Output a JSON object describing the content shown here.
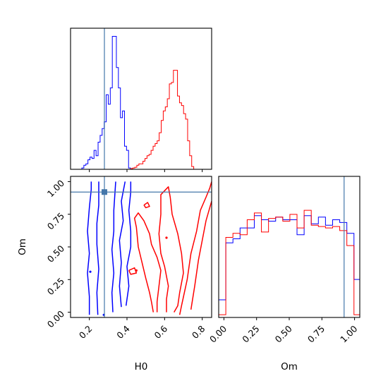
{
  "chart_data": {
    "type": "corner",
    "parameters": [
      "H0",
      "Om"
    ],
    "truth": {
      "H0": 0.28,
      "Om": 0.92
    },
    "colors": {
      "series_a": "#0000ff",
      "series_b": "#ff0000",
      "truth": "#4477aa"
    },
    "panels": [
      {
        "id": "h0-marginal",
        "type": "histogram",
        "x_param": "H0",
        "xlim": [
          0.1,
          0.85
        ],
        "ylim": [
          0,
          1.04
        ],
        "y_ticks_visible": false,
        "x_tick_labels_visible": false,
        "bins": [
          0.06,
          0.07,
          0.08,
          0.09,
          0.1,
          0.11,
          0.12,
          0.13,
          0.14,
          0.15,
          0.16,
          0.17,
          0.18,
          0.19,
          0.2,
          0.21,
          0.22,
          0.23,
          0.24,
          0.25,
          0.26,
          0.27,
          0.28,
          0.29,
          0.3,
          0.31,
          0.32,
          0.33,
          0.34,
          0.35,
          0.36,
          0.37,
          0.38,
          0.39,
          0.4,
          0.41,
          0.42,
          0.43,
          0.44,
          0.45,
          0.46,
          0.47,
          0.48,
          0.49,
          0.5,
          0.51,
          0.52,
          0.53,
          0.54,
          0.55,
          0.56,
          0.57,
          0.58,
          0.59,
          0.6,
          0.61,
          0.62,
          0.63,
          0.64,
          0.65,
          0.66,
          0.67,
          0.68,
          0.69,
          0.7,
          0.71,
          0.72,
          0.73,
          0.74,
          0.75,
          0.76,
          0.77,
          0.78,
          0.79,
          0.8,
          0.81,
          0.82,
          0.83,
          0.84,
          0.85,
          0.86
        ],
        "series": [
          {
            "color": "#0000ff",
            "x_start": 0.16,
            "bin_width": 0.0108,
            "counts": [
              0.01,
              0.03,
              0.04,
              0.07,
              0.09,
              0.08,
              0.14,
              0.1,
              0.2,
              0.25,
              0.3,
              0.35,
              0.55,
              0.48,
              0.6,
              0.98,
              0.98,
              0.75,
              0.6,
              0.38,
              0.43,
              0.17,
              0.14,
              0.01
            ]
          },
          {
            "color": "#ff0000",
            "x_start": 0.42,
            "bin_width": 0.0108,
            "counts": [
              0.005,
              0.01,
              0.015,
              0.03,
              0.04,
              0.04,
              0.06,
              0.08,
              0.1,
              0.11,
              0.14,
              0.17,
              0.19,
              0.21,
              0.27,
              0.36,
              0.43,
              0.46,
              0.52,
              0.63,
              0.64,
              0.73,
              0.73,
              0.54,
              0.49,
              0.47,
              0.41,
              0.37,
              0.21,
              0.1,
              0.02
            ]
          }
        ]
      },
      {
        "id": "h0-om-joint",
        "type": "contour",
        "x_param": "H0",
        "y_param": "Om",
        "xlim": [
          0.1,
          0.85
        ],
        "ylim": [
          -0.04,
          1.04
        ],
        "xticks": [
          0.2,
          0.4,
          0.6,
          0.8
        ],
        "xtick_labels": [
          "0.2",
          "0.4",
          "0.6",
          "0.8"
        ],
        "yticks": [
          0.0,
          0.25,
          0.5,
          0.75,
          1.0
        ],
        "ytick_labels": [
          "0.00",
          "0.25",
          "0.50",
          "0.75",
          "1.00"
        ],
        "xlabel": "H0",
        "ylabel": "Om",
        "series": [
          {
            "color": "#0000ff",
            "contours": [
              [
                [
                  0.2,
                  -0.02
                ],
                [
                  0.2,
                  0.12
                ],
                [
                  0.19,
                  0.3
                ],
                [
                  0.2,
                  0.45
                ],
                [
                  0.19,
                  0.62
                ],
                [
                  0.2,
                  0.8
                ],
                [
                  0.21,
                  0.94
                ],
                [
                  0.21,
                  1.0
                ]
              ],
              [
                [
                  0.245,
                  -0.02
                ],
                [
                  0.24,
                  0.15
                ],
                [
                  0.25,
                  0.33
                ],
                [
                  0.24,
                  0.52
                ],
                [
                  0.24,
                  0.68
                ],
                [
                  0.25,
                  0.82
                ],
                [
                  0.25,
                  1.0
                ]
              ],
              [
                [
                  0.325,
                  0.0
                ],
                [
                  0.32,
                  0.15
                ],
                [
                  0.33,
                  0.3
                ],
                [
                  0.32,
                  0.48
                ],
                [
                  0.33,
                  0.62
                ],
                [
                  0.33,
                  0.78
                ],
                [
                  0.34,
                  1.0
                ]
              ],
              [
                [
                  0.37,
                  0.04
                ],
                [
                  0.36,
                  0.2
                ],
                [
                  0.37,
                  0.38
                ],
                [
                  0.36,
                  0.55
                ],
                [
                  0.38,
                  0.7
                ],
                [
                  0.37,
                  0.85
                ],
                [
                  0.39,
                  1.0
                ]
              ],
              [
                [
                  0.395,
                  0.05
                ],
                [
                  0.41,
                  0.2
                ],
                [
                  0.4,
                  0.35
                ],
                [
                  0.42,
                  0.5
                ],
                [
                  0.42,
                  0.62
                ],
                [
                  0.41,
                  0.78
                ],
                [
                  0.42,
                  0.92
                ],
                [
                  0.42,
                  1.0
                ]
              ]
            ],
            "markers": [
              {
                "x": 0.205,
                "y": 0.31
              },
              {
                "x": 0.277,
                "y": -0.02
              }
            ]
          },
          {
            "color": "#ff0000",
            "contours": [
              [
                [
                  0.41,
                  0.32
                ],
                [
                  0.44,
                  0.34
                ],
                [
                  0.45,
                  0.3
                ],
                [
                  0.42,
                  0.29
                ],
                [
                  0.41,
                  0.32
                ]
              ],
              [
                [
                  0.49,
                  0.82
                ],
                [
                  0.51,
                  0.84
                ],
                [
                  0.52,
                  0.81
                ],
                [
                  0.5,
                  0.8
                ],
                [
                  0.49,
                  0.82
                ]
              ],
              [
                [
                  0.54,
                  0.0
                ],
                [
                  0.53,
                  0.08
                ],
                [
                  0.52,
                  0.15
                ],
                [
                  0.5,
                  0.26
                ],
                [
                  0.48,
                  0.38
                ],
                [
                  0.46,
                  0.5
                ],
                [
                  0.45,
                  0.65
                ],
                [
                  0.44,
                  0.72
                ],
                [
                  0.46,
                  0.76
                ],
                [
                  0.49,
                  0.7
                ],
                [
                  0.52,
                  0.6
                ],
                [
                  0.53,
                  0.52
                ],
                [
                  0.56,
                  0.42
                ],
                [
                  0.58,
                  0.32
                ],
                [
                  0.57,
                  0.2
                ],
                [
                  0.56,
                  0.08
                ],
                [
                  0.56,
                  0.0
                ]
              ],
              [
                [
                  0.61,
                  0.0
                ],
                [
                  0.61,
                  0.1
                ],
                [
                  0.62,
                  0.2
                ],
                [
                  0.6,
                  0.35
                ],
                [
                  0.58,
                  0.45
                ],
                [
                  0.57,
                  0.6
                ],
                [
                  0.58,
                  0.75
                ],
                [
                  0.58,
                  0.9
                ],
                [
                  0.62,
                  0.96
                ],
                [
                  0.63,
                  0.88
                ],
                [
                  0.64,
                  0.75
                ],
                [
                  0.67,
                  0.6
                ],
                [
                  0.69,
                  0.45
                ],
                [
                  0.7,
                  0.3
                ],
                [
                  0.68,
                  0.15
                ],
                [
                  0.67,
                  0.05
                ],
                [
                  0.65,
                  0.0
                ]
              ],
              [
                [
                  0.68,
                  -0.02
                ],
                [
                  0.69,
                  0.05
                ],
                [
                  0.72,
                  0.25
                ],
                [
                  0.74,
                  0.45
                ],
                [
                  0.77,
                  0.62
                ],
                [
                  0.79,
                  0.78
                ],
                [
                  0.82,
                  0.88
                ],
                [
                  0.84,
                  0.95
                ],
                [
                  0.85,
                  1.0
                ]
              ],
              [
                [
                  0.74,
                  0.02
                ],
                [
                  0.76,
                  0.2
                ],
                [
                  0.78,
                  0.4
                ],
                [
                  0.8,
                  0.55
                ],
                [
                  0.82,
                  0.7
                ],
                [
                  0.85,
                  0.85
                ]
              ]
            ],
            "markers": [
              {
                "x": 0.61,
                "y": 0.57
              },
              {
                "x": 0.45,
                "y": 0.32
              }
            ]
          }
        ]
      },
      {
        "id": "om-marginal",
        "type": "histogram",
        "x_param": "Om",
        "xlim": [
          -0.04,
          1.04
        ],
        "ylim": [
          0,
          1.04
        ],
        "xticks": [
          0.0,
          0.25,
          0.5,
          0.75,
          1.0
        ],
        "xtick_labels": [
          "0.00",
          "0.25",
          "0.50",
          "0.75",
          "1.00"
        ],
        "xlabel": "Om",
        "y_ticks_visible": false,
        "series": [
          {
            "color": "#0000ff",
            "x_start": -0.04,
            "bin_width": 0.0545,
            "counts": [
              0.13,
              0.55,
              0.58,
              0.66,
              0.66,
              0.75,
              0.72,
              0.71,
              0.74,
              0.72,
              0.72,
              0.61,
              0.75,
              0.69,
              0.74,
              0.68,
              0.72,
              0.7,
              0.62,
              0.28
            ]
          },
          {
            "color": "#ff0000",
            "x_start": -0.04,
            "bin_width": 0.0545,
            "counts": [
              0.02,
              0.59,
              0.62,
              0.61,
              0.72,
              0.77,
              0.63,
              0.73,
              0.74,
              0.71,
              0.76,
              0.66,
              0.79,
              0.68,
              0.67,
              0.66,
              0.67,
              0.64,
              0.53,
              0.02
            ]
          }
        ]
      }
    ]
  }
}
